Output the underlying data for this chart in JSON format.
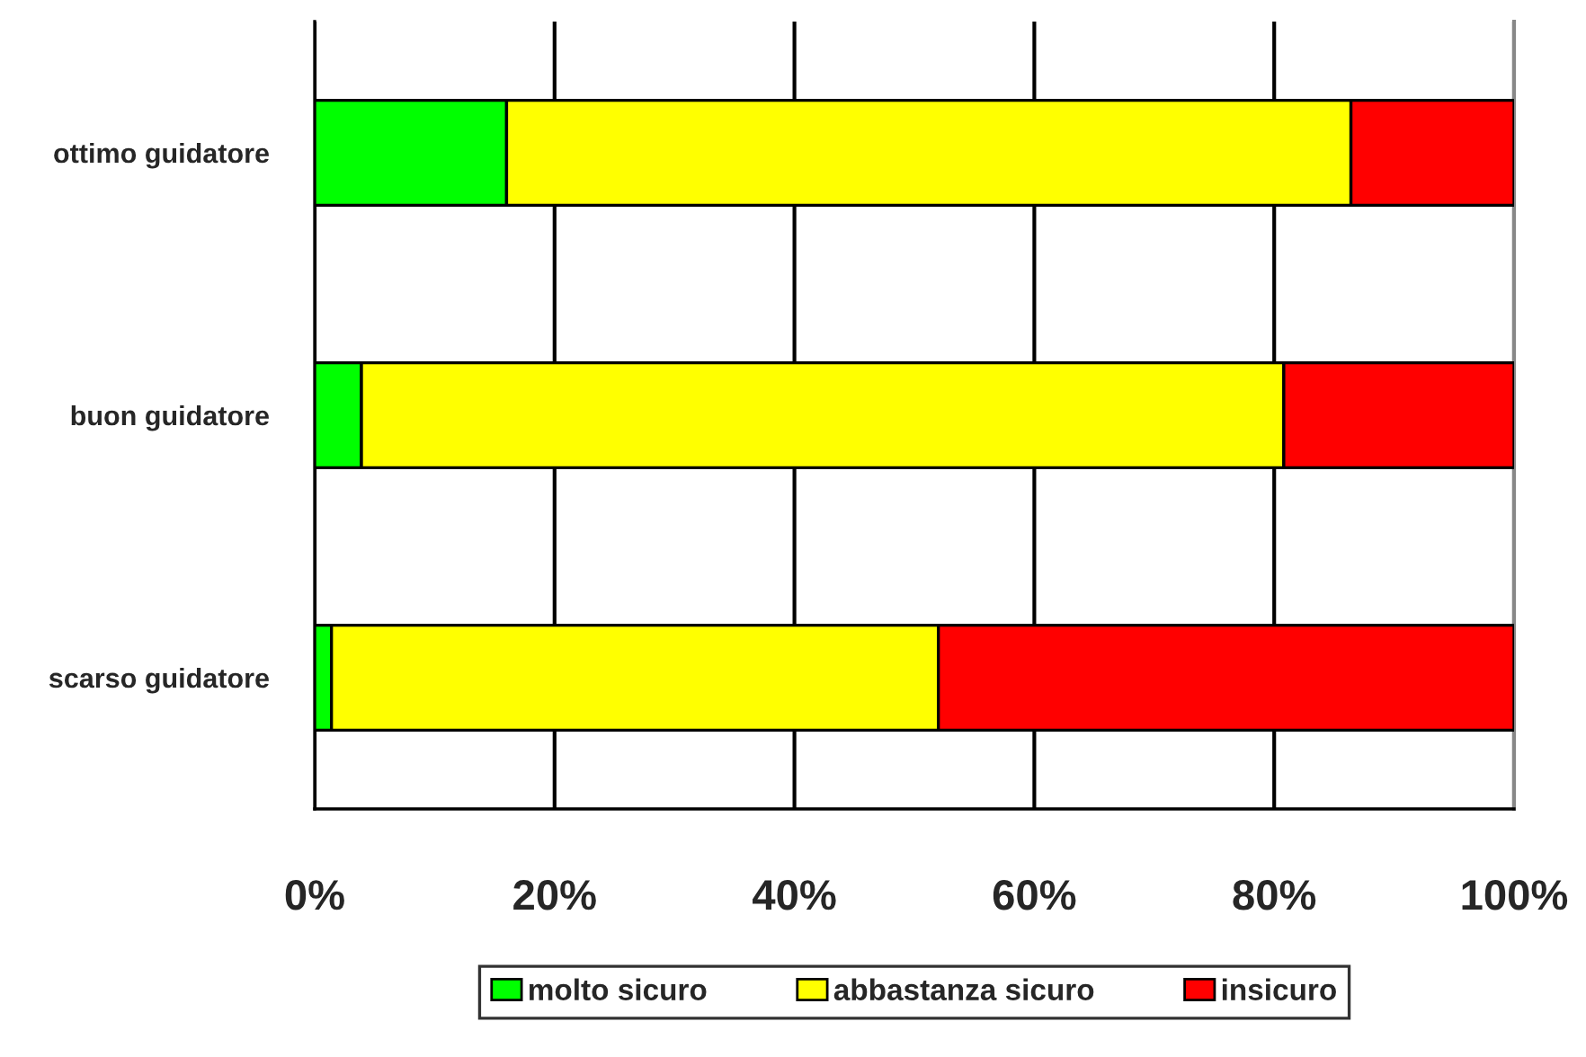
{
  "chart_data": {
    "type": "bar",
    "orientation": "horizontal",
    "stacked": true,
    "categories": [
      "ottimo guidatore",
      "buon guidatore",
      "scarso guidatore"
    ],
    "series": [
      {
        "name": "molto sicuro",
        "color": "#00ff00",
        "values": [
          16.0,
          3.9,
          1.4
        ]
      },
      {
        "name": "abbastanza sicuro",
        "color": "#ffff00",
        "values": [
          70.4,
          76.9,
          50.6
        ]
      },
      {
        "name": "insicuro",
        "color": "#ff0000",
        "values": [
          13.6,
          19.2,
          48.0
        ]
      }
    ],
    "xlim": [
      0,
      100
    ],
    "xticks": [
      {
        "value": 0,
        "label": "0%"
      },
      {
        "value": 20,
        "label": "20%"
      },
      {
        "value": 40,
        "label": "40%"
      },
      {
        "value": 60,
        "label": "60%"
      },
      {
        "value": 80,
        "label": "80%"
      },
      {
        "value": 100,
        "label": "100%"
      }
    ],
    "grid": "x",
    "legend": "bottom"
  }
}
